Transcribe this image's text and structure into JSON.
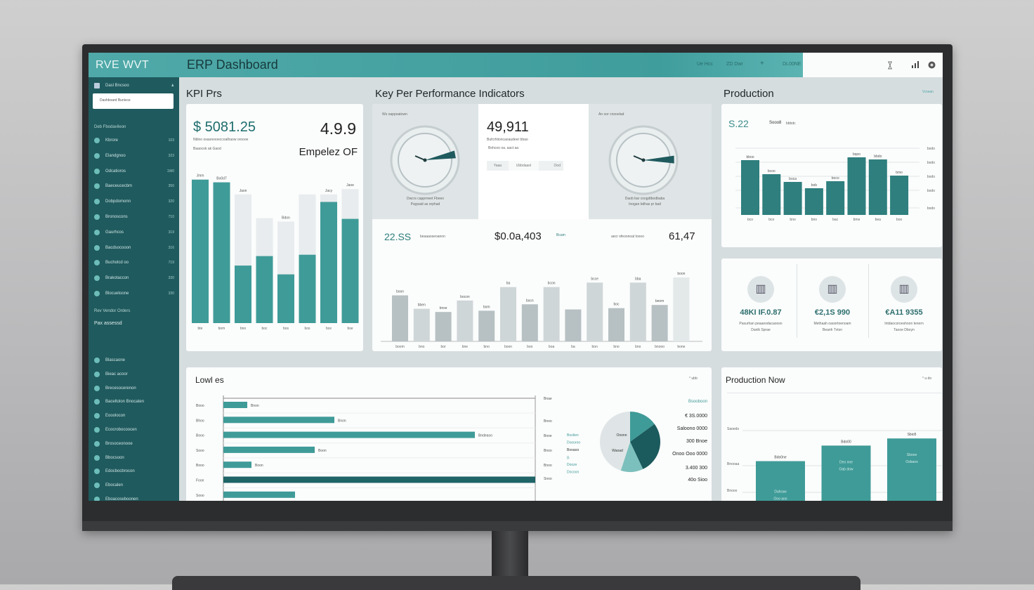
{
  "app": {
    "brand": "RVE WVT",
    "title": "ERP Dashboard",
    "nav": [
      "Ue Hcc",
      "ZD Dwr",
      "+",
      "DL00NE"
    ],
    "right_icons": [
      "hourglass-icon",
      "bar-chart-icon",
      "settings-icon"
    ]
  },
  "sidebar": {
    "top_label": "Dasl Bncsoo",
    "search_placeholder": "Dashboard Bunivce",
    "group1": "Deb Fbodavileon",
    "items1": [
      {
        "label": "Kbrore",
        "count": "103"
      },
      {
        "label": "Elandgnoo",
        "count": "323"
      },
      {
        "label": "Odcatioros",
        "count": "1W0"
      },
      {
        "label": "Baeceucecbm",
        "count": "350"
      },
      {
        "label": "Dobpdomonn",
        "count": "320"
      },
      {
        "label": "Bronoscons",
        "count": "710"
      },
      {
        "label": "Gaurhcos",
        "count": "319"
      },
      {
        "label": "Bacdsocooon",
        "count": "316"
      },
      {
        "label": "Bucholcd oo",
        "count": "719"
      },
      {
        "label": "Brakotaccon",
        "count": "330"
      },
      {
        "label": "Blocuetoone",
        "count": "330"
      }
    ],
    "group2": "Rev Vendor Orders",
    "group2b": "Pax assessd",
    "items2": [
      {
        "label": "Blascaone"
      },
      {
        "label": "Bieac acoor"
      },
      {
        "label": "Brecesocerenon"
      },
      {
        "label": "Baceltolon Bnocaten"
      },
      {
        "label": "Eooolocon"
      },
      {
        "label": "Ecocrobocoocen"
      },
      {
        "label": "Brosoceonooe"
      },
      {
        "label": "Bbocsoon"
      },
      {
        "label": "Edocbocbrocon"
      },
      {
        "label": "Ebocalen"
      },
      {
        "label": "Eboacoseboonen"
      }
    ]
  },
  "kpi_prs": {
    "title": "KPI Prs",
    "value": "$ 5081.25",
    "sub": "Nblno osasreooeccoalhaow oroooe",
    "sub2": "Baaocok ak Gaod",
    "value2": "4.9.9",
    "label2": "Empelez OF",
    "chart_data": {
      "type": "bar",
      "title": "",
      "ylim": [
        0,
        220
      ],
      "bar_labels": [
        "Jmm",
        "Bo0d7",
        "Jaon",
        "",
        "Bdon",
        "",
        "Jacy",
        "Jaoe"
      ],
      "categories": [
        "bte",
        "bom",
        "bno",
        "boc",
        "bos",
        "bos",
        "bce",
        "bse"
      ],
      "series": [
        {
          "name": "actual",
          "values": [
            212,
            208,
            85,
            99,
            72,
            101,
            179,
            154
          ]
        },
        {
          "name": "target",
          "values": [
            0,
            0,
            190,
            155,
            150,
            190,
            190,
            198
          ]
        }
      ]
    }
  },
  "kpi_main": {
    "title": "Key Per Performance Indicators",
    "gauge1": {
      "label": "Ws oappoatown",
      "value": 0.72,
      "caption": "Dwcrs capprneet Fbeeo",
      "caption2": "Paypaid as orphad"
    },
    "center": {
      "value": "49,911",
      "sub": "Bufcrhtioncaoaudeer bbao",
      "sub2": "Bohcoo oa. aact aa",
      "tabs": [
        "Yaaa",
        "Ubbdaaol",
        "Ood"
      ]
    },
    "gauge2": {
      "label": "An oor cnooelad",
      "value": 0.8,
      "caption": "Daob bar coogdtbodbaba",
      "caption2": "Inogan bdhas pr bad"
    },
    "stats": [
      {
        "value": "22.SS",
        "label": "beaaaoseoanon"
      },
      {
        "value": "$0.0a,403",
        "label": "Bcam"
      },
      {
        "label": "aecr ofeoonoal toooo",
        "value": "61,47"
      }
    ],
    "chart_data": {
      "type": "bar",
      "ylim": [
        0,
        110
      ],
      "categories": [
        "boom",
        "bno",
        "bor",
        "bne",
        "bno",
        "boon",
        "boo",
        "boa",
        "ba",
        "bon",
        "bno",
        "bno",
        "bnooo",
        "bone"
      ],
      "values": [
        72,
        51,
        46,
        64,
        48,
        85,
        58,
        85,
        50,
        92,
        52,
        92,
        57,
        100
      ],
      "bar_labels": [
        "boon",
        "bben",
        "bnse",
        "bocon",
        "bom",
        "ba",
        "bocn",
        "bcon",
        "",
        "bcce",
        "boc",
        "bba",
        "beom",
        "boon"
      ]
    }
  },
  "production": {
    "title": "Production",
    "link": "Vcrean",
    "header_value": "S.22",
    "header_sub": "Sooo8",
    "header_sub2": "bbbdc",
    "chart_data": {
      "type": "bar",
      "ylim": [
        0,
        100
      ],
      "yticks": [
        "bodo",
        "bodo",
        "bodo",
        "bodo",
        "bodo",
        "bodo"
      ],
      "categories": [
        "bco",
        "bco",
        "bno",
        "bno",
        "bac",
        "bme",
        "bea",
        "boo"
      ],
      "values": [
        78,
        58,
        47,
        38,
        48,
        82,
        79,
        56
      ],
      "bar_labels": [
        "bboo",
        "bcoo",
        "boca",
        "bob",
        "boco",
        "bqoo",
        "bbdo",
        "bmo"
      ]
    }
  },
  "metrics": [
    {
      "icon": "factory-icon",
      "value": "48KI IF.0.87",
      "sub": "Pasurhan peaaeodacaoosn",
      "sub2": "Danlk Sprae"
    },
    {
      "icon": "building-icon",
      "value": "€2,1S 990",
      "sub": "Methaah oaoortoenoam",
      "sub2": "Beanh Tvtsn"
    },
    {
      "icon": "worker-icon",
      "value": "€A11 9355",
      "sub": "Intdaocoroeshoon tenern",
      "sub2": "Taooe Dboyn"
    }
  ],
  "levels": {
    "title": "Lowl es",
    "link": "° ubb",
    "chart_data": {
      "type": "bar",
      "orientation": "horizontal",
      "categories": [
        "Booo",
        "Bhoo",
        "Booo",
        "Sooo",
        "Booo",
        "Foon",
        "Sooo"
      ],
      "values": [
        34,
        158,
        358,
        130,
        40,
        444,
        102
      ],
      "value_labels": [
        "Bnon",
        "Bnon",
        "Bndeaoo",
        "Boon",
        "Boon",
        "",
        ""
      ],
      "xlim": [
        0,
        444
      ]
    }
  },
  "pie": {
    "left_labels": [
      "Bnae",
      "Bnoo",
      "Bnoe",
      "Bnoo",
      "Bnoo",
      "Snoo"
    ],
    "legend": [
      "Boolien",
      "Doooroo",
      "Booaoo",
      "g.",
      "Dooze",
      "Docoon"
    ],
    "inner_labels": [
      "Ooonn",
      "Waoad"
    ],
    "right_labels": [
      "Bsooboon",
      "€ 3S.0000",
      "Saloono 0000",
      "300 Bnoe",
      "Onoo Ooo 0000",
      "3.400 300",
      "40o Sioo"
    ],
    "chart_data": {
      "type": "pie",
      "slices": [
        {
          "name": "A",
          "value": 15,
          "color": "#3f9b98"
        },
        {
          "name": "B",
          "value": 28,
          "color": "#1b5a5d"
        },
        {
          "name": "C",
          "value": 12,
          "color": "#7cc0bd"
        },
        {
          "name": "D",
          "value": 45,
          "color": "#dfe5e6"
        }
      ]
    }
  },
  "production_now": {
    "title": "Production Now",
    "link": "° u do",
    "chart_data": {
      "type": "bar",
      "ylim": [
        0,
        130
      ],
      "yticks": [
        "Saoeds",
        "Bnooaa",
        "Bnooo"
      ],
      "categories": [
        "Dabrw",
        "Deo nne",
        "Sbooe"
      ],
      "values": [
        72,
        96,
        107
      ],
      "bar_labels": [
        "Bdo0ne",
        "Bdo00",
        "Sbio5"
      ],
      "inner_labels": [
        [
          "Dahraw",
          "Ooo aoo"
        ],
        [
          "Deo nne",
          "Oab dow"
        ],
        [
          "Sbooe",
          "Osbaoo"
        ]
      ]
    }
  },
  "colors": {
    "teal": "#3f9b98",
    "dark_teal": "#1f5a5e",
    "header": "#4aa5a4",
    "gray_bar": "#b9c2c5"
  }
}
